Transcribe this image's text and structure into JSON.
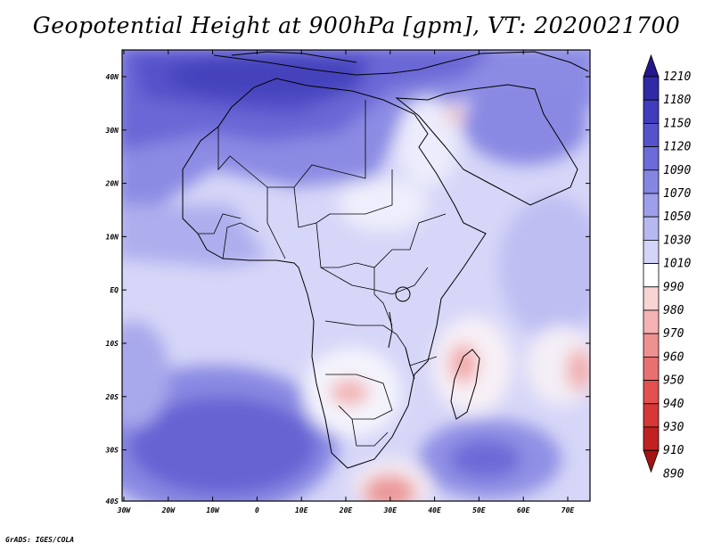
{
  "title": "Geopotential Height at 900hPa [gpm], VT: 2020021700",
  "credit": "GrADS: IGES/COLA",
  "map": {
    "lat_labels": [
      "40N",
      "30N",
      "20N",
      "10N",
      "EQ",
      "10S",
      "20S",
      "30S",
      "40S"
    ],
    "lon_labels": [
      "30W",
      "20W",
      "10W",
      "0",
      "10E",
      "20E",
      "30E",
      "40E",
      "50E",
      "60E",
      "70E"
    ]
  },
  "colorbar": {
    "labels": [
      "1210",
      "1180",
      "1150",
      "1120",
      "1090",
      "1070",
      "1050",
      "1030",
      "1010",
      "990",
      "980",
      "970",
      "960",
      "950",
      "940",
      "930",
      "910",
      "890"
    ],
    "colors": [
      "#24178c",
      "#302aa6",
      "#3f3dbd",
      "#5552cc",
      "#6c6bd9",
      "#8585e2",
      "#9e9eea",
      "#b8b8f1",
      "#d4d4f8",
      "#ffffff",
      "#f9d4d4",
      "#f5b3b3",
      "#ef9191",
      "#e97070",
      "#e25050",
      "#d63737",
      "#c02222",
      "#a41414"
    ]
  }
}
